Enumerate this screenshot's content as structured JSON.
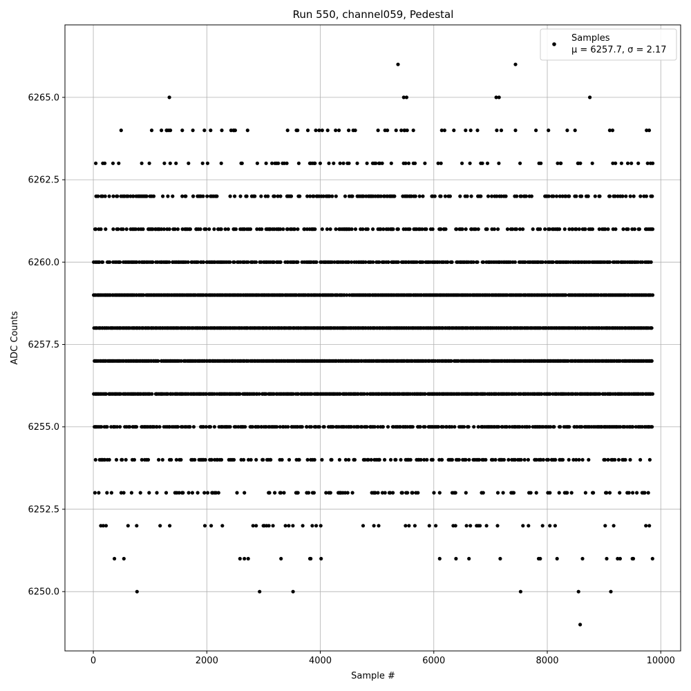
{
  "chart_data": {
    "type": "scatter",
    "title": "Run 550, channel059, Pedestal",
    "xlabel": "Sample #",
    "ylabel": "ADC Counts",
    "xlim": [
      -500,
      10350
    ],
    "ylim": [
      6248.2,
      6267.2
    ],
    "xticks": [
      0,
      2000,
      4000,
      6000,
      8000,
      10000
    ],
    "xtick_labels": [
      "0",
      "2000",
      "4000",
      "6000",
      "8000",
      "10000"
    ],
    "yticks": [
      6250.0,
      6252.5,
      6255.0,
      6257.5,
      6260.0,
      6262.5,
      6265.0
    ],
    "ytick_labels": [
      "6250.0",
      "6252.5",
      "6255.0",
      "6257.5",
      "6260.0",
      "6262.5",
      "6265.0"
    ],
    "grid": true,
    "legend_position": "top-right",
    "series": [
      {
        "name": "Samples",
        "stats_label": "μ = 6257.7, σ = 2.17",
        "mean": 6257.7,
        "sigma": 2.17,
        "color": "#000000",
        "sample_range": [
          0,
          9850
        ],
        "dense_levels": [
          {
            "y": 6260,
            "occupancy": 0.75
          },
          {
            "y": 6259,
            "occupancy": 0.97
          },
          {
            "y": 6258,
            "occupancy": 1.0
          },
          {
            "y": 6257,
            "occupancy": 0.97
          },
          {
            "y": 6256,
            "occupancy": 0.9
          },
          {
            "y": 6255,
            "occupancy": 0.65
          },
          {
            "y": 6254,
            "occupancy": 0.35
          },
          {
            "y": 6262,
            "occupancy": 0.35
          },
          {
            "y": 6261,
            "occupancy": 0.45
          },
          {
            "y": 6263,
            "occupancy": 0.18
          },
          {
            "y": 6253,
            "occupancy": 0.2
          },
          {
            "y": 6252,
            "occupancy": 0.08
          },
          {
            "y": 6264,
            "occupancy": 0.05
          },
          {
            "y": 6251,
            "occupancy": 0.04
          }
        ],
        "points": [
          [
            770,
            6250
          ],
          [
            2930,
            6250
          ],
          [
            3520,
            6250
          ],
          [
            7530,
            6250
          ],
          [
            8550,
            6250
          ],
          [
            9120,
            6250
          ],
          [
            8580,
            6249
          ],
          [
            5370,
            6266
          ],
          [
            7440,
            6266
          ],
          [
            1340,
            6265
          ],
          [
            5470,
            6265
          ],
          [
            5520,
            6265
          ],
          [
            7100,
            6265
          ],
          [
            7150,
            6265
          ],
          [
            8750,
            6265
          ],
          [
            490,
            6264
          ],
          [
            1200,
            6264
          ],
          [
            1290,
            6264
          ],
          [
            1330,
            6264
          ],
          [
            2470,
            6264
          ],
          [
            2500,
            6264
          ],
          [
            3600,
            6264
          ],
          [
            3780,
            6264
          ],
          [
            3920,
            6264
          ],
          [
            3980,
            6264
          ],
          [
            4130,
            6264
          ],
          [
            4270,
            6264
          ],
          [
            4330,
            6264
          ],
          [
            4500,
            6264
          ],
          [
            4580,
            6264
          ],
          [
            5140,
            6264
          ],
          [
            5480,
            6264
          ],
          [
            5530,
            6264
          ],
          [
            5640,
            6264
          ],
          [
            6140,
            6264
          ],
          [
            6190,
            6264
          ],
          [
            6560,
            6264
          ],
          [
            6650,
            6264
          ],
          [
            6770,
            6264
          ],
          [
            7110,
            6264
          ],
          [
            7190,
            6264
          ],
          [
            7440,
            6264
          ],
          [
            7800,
            6264
          ],
          [
            9100,
            6264
          ],
          [
            9150,
            6264
          ],
          [
            9750,
            6264
          ]
        ]
      }
    ]
  }
}
